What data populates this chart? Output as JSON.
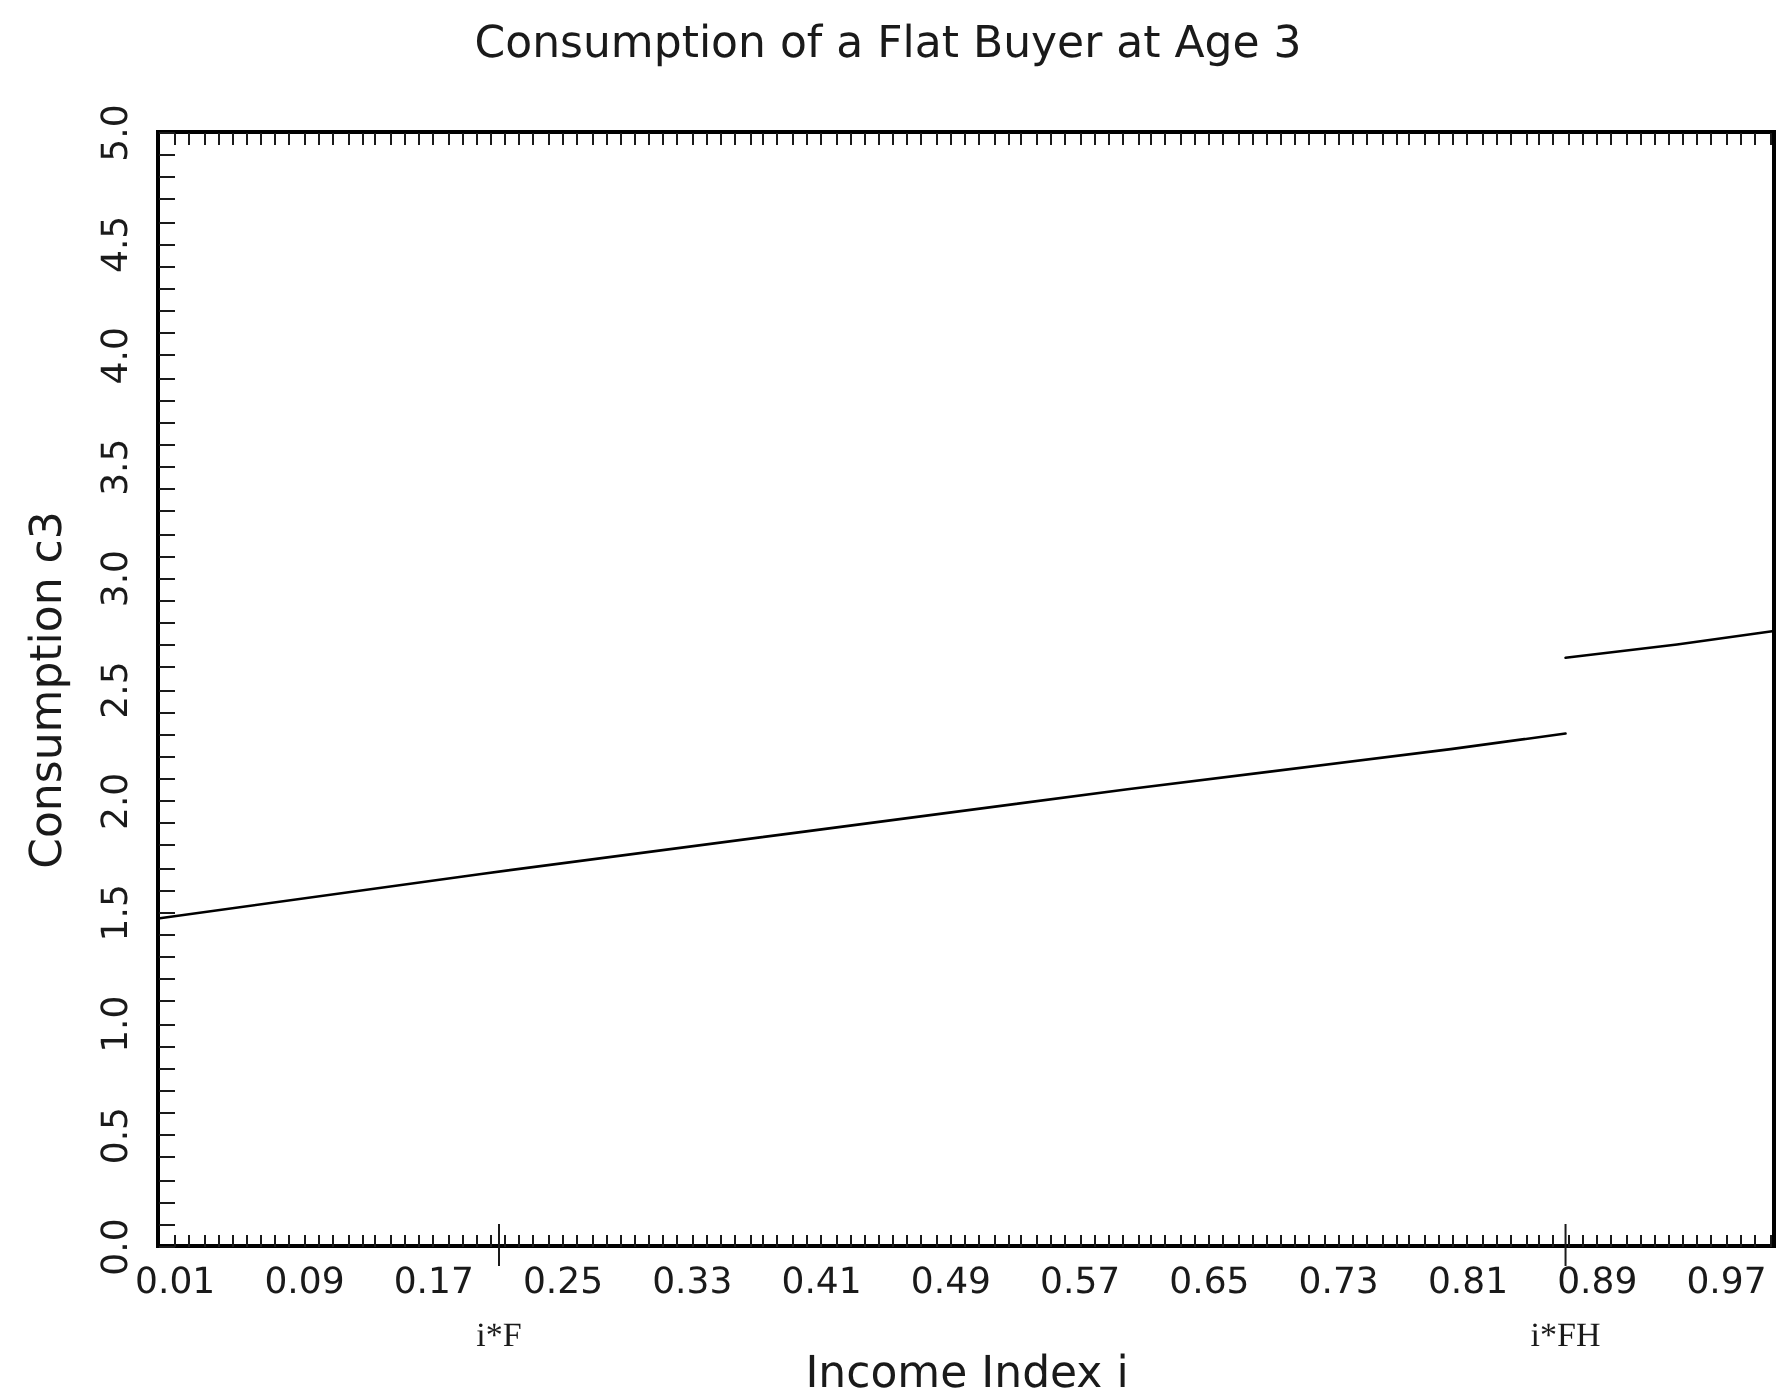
{
  "chart_data": {
    "type": "line",
    "title": "Consumption of a Flat Buyer at Age 3",
    "xlabel": "Income Index i",
    "ylabel": "Consumption c3",
    "series": [
      {
        "x": [
          0,
          0.2,
          0.4,
          0.6,
          0.8,
          0.871
        ],
        "values": [
          1.47,
          1.67,
          1.86,
          2.05,
          2.23,
          2.3
        ],
        "color": "#000000"
      },
      {
        "x": [
          0.871,
          0.94,
          1.0
        ],
        "values": [
          2.64,
          2.7,
          2.76
        ],
        "color": "#000000"
      }
    ],
    "xlim": [
      0,
      1
    ],
    "xticks": [
      0.01,
      {
        "value": 0.019,
        "label": null
      },
      {
        "value": 0.028,
        "label": null
      },
      {
        "value": 0.037,
        "label": null
      },
      {
        "value": 0.046,
        "label": null
      },
      {
        "value": 0.054,
        "label": null
      },
      {
        "value": 0.063,
        "label": null
      },
      {
        "value": 0.072,
        "label": null
      },
      {
        "value": 0.081,
        "label": null
      },
      0.09,
      {
        "value": 0.099,
        "label": null
      },
      {
        "value": 0.108,
        "label": null
      },
      {
        "value": 0.117,
        "label": null
      },
      {
        "value": 0.126,
        "label": null
      },
      {
        "value": 0.134,
        "label": null
      },
      {
        "value": 0.143,
        "label": null
      },
      {
        "value": 0.152,
        "label": null
      },
      {
        "value": 0.161,
        "label": null
      },
      0.17,
      {
        "value": 0.179,
        "label": null
      },
      {
        "value": 0.188,
        "label": null
      },
      {
        "value": 0.197,
        "label": null
      },
      {
        "value": 0.206,
        "label": null
      },
      {
        "value": 0.214,
        "label": null
      },
      {
        "value": 0.223,
        "label": null
      },
      {
        "value": 0.232,
        "label": null
      },
      {
        "value": 0.241,
        "label": null
      },
      0.25,
      {
        "value": 0.259,
        "label": null
      },
      {
        "value": 0.268,
        "label": null
      },
      {
        "value": 0.277,
        "label": null
      },
      {
        "value": 0.286,
        "label": null
      },
      {
        "value": 0.294,
        "label": null
      },
      {
        "value": 0.303,
        "label": null
      },
      {
        "value": 0.312,
        "label": null
      },
      {
        "value": 0.321,
        "label": null
      },
      0.33,
      {
        "value": 0.339,
        "label": null
      },
      {
        "value": 0.348,
        "label": null
      },
      {
        "value": 0.357,
        "label": null
      },
      {
        "value": 0.366,
        "label": null
      },
      {
        "value": 0.374,
        "label": null
      },
      {
        "value": 0.383,
        "label": null
      },
      {
        "value": 0.392,
        "label": null
      },
      {
        "value": 0.401,
        "label": null
      },
      0.41,
      {
        "value": 0.419,
        "label": null
      },
      {
        "value": 0.428,
        "label": null
      },
      {
        "value": 0.437,
        "label": null
      },
      {
        "value": 0.446,
        "label": null
      },
      {
        "value": 0.454,
        "label": null
      },
      {
        "value": 0.463,
        "label": null
      },
      {
        "value": 0.472,
        "label": null
      },
      {
        "value": 0.481,
        "label": null
      },
      0.49,
      {
        "value": 0.499,
        "label": null
      },
      {
        "value": 0.508,
        "label": null
      },
      {
        "value": 0.517,
        "label": null
      },
      {
        "value": 0.526,
        "label": null
      },
      {
        "value": 0.534,
        "label": null
      },
      {
        "value": 0.543,
        "label": null
      },
      {
        "value": 0.552,
        "label": null
      },
      {
        "value": 0.561,
        "label": null
      },
      0.57,
      {
        "value": 0.579,
        "label": null
      },
      {
        "value": 0.588,
        "label": null
      },
      {
        "value": 0.597,
        "label": null
      },
      {
        "value": 0.606,
        "label": null
      },
      {
        "value": 0.614,
        "label": null
      },
      {
        "value": 0.623,
        "label": null
      },
      {
        "value": 0.632,
        "label": null
      },
      {
        "value": 0.641,
        "label": null
      },
      0.65,
      {
        "value": 0.659,
        "label": null
      },
      {
        "value": 0.668,
        "label": null
      },
      {
        "value": 0.677,
        "label": null
      },
      {
        "value": 0.686,
        "label": null
      },
      {
        "value": 0.694,
        "label": null
      },
      {
        "value": 0.703,
        "label": null
      },
      {
        "value": 0.712,
        "label": null
      },
      {
        "value": 0.721,
        "label": null
      },
      0.73,
      {
        "value": 0.739,
        "label": null
      },
      {
        "value": 0.748,
        "label": null
      },
      {
        "value": 0.757,
        "label": null
      },
      {
        "value": 0.766,
        "label": null
      },
      {
        "value": 0.774,
        "label": null
      },
      {
        "value": 0.783,
        "label": null
      },
      {
        "value": 0.792,
        "label": null
      },
      {
        "value": 0.801,
        "label": null
      },
      0.81,
      {
        "value": 0.819,
        "label": null
      },
      {
        "value": 0.828,
        "label": null
      },
      {
        "value": 0.837,
        "label": null
      },
      {
        "value": 0.846,
        "label": null
      },
      {
        "value": 0.854,
        "label": null
      },
      {
        "value": 0.863,
        "label": null
      },
      {
        "value": 0.872,
        "label": null
      },
      {
        "value": 0.881,
        "label": null
      },
      0.89,
      {
        "value": 0.899,
        "label": null
      },
      {
        "value": 0.908,
        "label": null
      },
      {
        "value": 0.917,
        "label": null
      },
      {
        "value": 0.926,
        "label": null
      },
      {
        "value": 0.934,
        "label": null
      },
      {
        "value": 0.943,
        "label": null
      },
      {
        "value": 0.952,
        "label": null
      },
      {
        "value": 0.961,
        "label": null
      },
      0.97,
      {
        "value": 0.979,
        "label": null
      },
      {
        "value": 0.988,
        "label": null
      },
      {
        "value": 0.997,
        "label": null
      }
    ],
    "ylim": [
      0,
      5
    ],
    "yticks": [
      {
        "value": 0,
        "label": "0.0"
      },
      {
        "value": 0.1,
        "label": null
      },
      {
        "value": 0.2,
        "label": null
      },
      {
        "value": 0.3,
        "label": null
      },
      {
        "value": 0.4,
        "label": null
      },
      {
        "value": 0.5,
        "label": "0.5"
      },
      {
        "value": 0.6,
        "label": null
      },
      {
        "value": 0.7,
        "label": null
      },
      {
        "value": 0.8,
        "label": null
      },
      {
        "value": 0.9,
        "label": null
      },
      {
        "value": 1,
        "label": "1.0"
      },
      {
        "value": 1.1,
        "label": null
      },
      {
        "value": 1.2,
        "label": null
      },
      {
        "value": 1.3,
        "label": null
      },
      {
        "value": 1.4,
        "label": null
      },
      {
        "value": 1.5,
        "label": "1.5"
      },
      {
        "value": 1.6,
        "label": null
      },
      {
        "value": 1.7,
        "label": null
      },
      {
        "value": 1.8,
        "label": null
      },
      {
        "value": 1.9,
        "label": null
      },
      {
        "value": 2,
        "label": "2.0"
      },
      {
        "value": 2.1,
        "label": null
      },
      {
        "value": 2.2,
        "label": null
      },
      {
        "value": 2.3,
        "label": null
      },
      {
        "value": 2.4,
        "label": null
      },
      {
        "value": 2.5,
        "label": "2.5"
      },
      {
        "value": 2.6,
        "label": null
      },
      {
        "value": 2.7,
        "label": null
      },
      {
        "value": 2.8,
        "label": null
      },
      {
        "value": 2.9,
        "label": null
      },
      {
        "value": 3,
        "label": "3.0"
      },
      {
        "value": 3.1,
        "label": null
      },
      {
        "value": 3.2,
        "label": null
      },
      {
        "value": 3.3,
        "label": null
      },
      {
        "value": 3.4,
        "label": null
      },
      {
        "value": 3.5,
        "label": "3.5"
      },
      {
        "value": 3.6,
        "label": null
      },
      {
        "value": 3.7,
        "label": null
      },
      {
        "value": 3.8,
        "label": null
      },
      {
        "value": 3.9,
        "label": null
      },
      {
        "value": 4,
        "label": "4.0"
      },
      {
        "value": 4.1,
        "label": null
      },
      {
        "value": 4.2,
        "label": null
      },
      {
        "value": 4.3,
        "label": null
      },
      {
        "value": 4.4,
        "label": null
      },
      {
        "value": 4.5,
        "label": "4.5"
      },
      {
        "value": 4.6,
        "label": null
      },
      {
        "value": 4.7,
        "label": null
      },
      {
        "value": 4.8,
        "label": null
      },
      {
        "value": 4.9,
        "label": null
      },
      {
        "value": 5,
        "label": "5.0"
      }
    ],
    "ref_lines": [
      {
        "axis": "x",
        "value": 0.211,
        "label": "i*F"
      },
      {
        "axis": "x",
        "value": 0.871,
        "label": "i*FH"
      }
    ],
    "grid": false,
    "marker": "none",
    "line_style": "solid"
  }
}
